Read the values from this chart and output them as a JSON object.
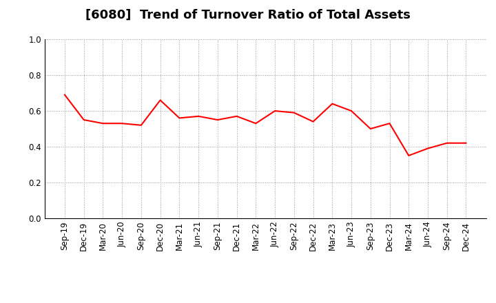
{
  "title": "[6080]  Trend of Turnover Ratio of Total Assets",
  "line_color": "#FF0000",
  "line_width": 1.5,
  "background_color": "#FFFFFF",
  "grid_color": "#999999",
  "ylim": [
    0.0,
    1.0
  ],
  "yticks": [
    0.0,
    0.2,
    0.4,
    0.6,
    0.8,
    1.0
  ],
  "x_labels": [
    "Sep-19",
    "Dec-19",
    "Mar-20",
    "Jun-20",
    "Sep-20",
    "Dec-20",
    "Mar-21",
    "Jun-21",
    "Sep-21",
    "Dec-21",
    "Mar-22",
    "Jun-22",
    "Sep-22",
    "Dec-22",
    "Mar-23",
    "Jun-23",
    "Sep-23",
    "Dec-23",
    "Mar-24",
    "Jun-24",
    "Sep-24",
    "Dec-24"
  ],
  "values": [
    0.69,
    0.55,
    0.53,
    0.53,
    0.52,
    0.66,
    0.56,
    0.57,
    0.55,
    0.57,
    0.53,
    0.6,
    0.59,
    0.54,
    0.64,
    0.6,
    0.5,
    0.53,
    0.35,
    0.39,
    0.42,
    0.42
  ],
  "title_fontsize": 13,
  "tick_fontsize": 8.5,
  "fig_width": 7.2,
  "fig_height": 4.4,
  "dpi": 100
}
